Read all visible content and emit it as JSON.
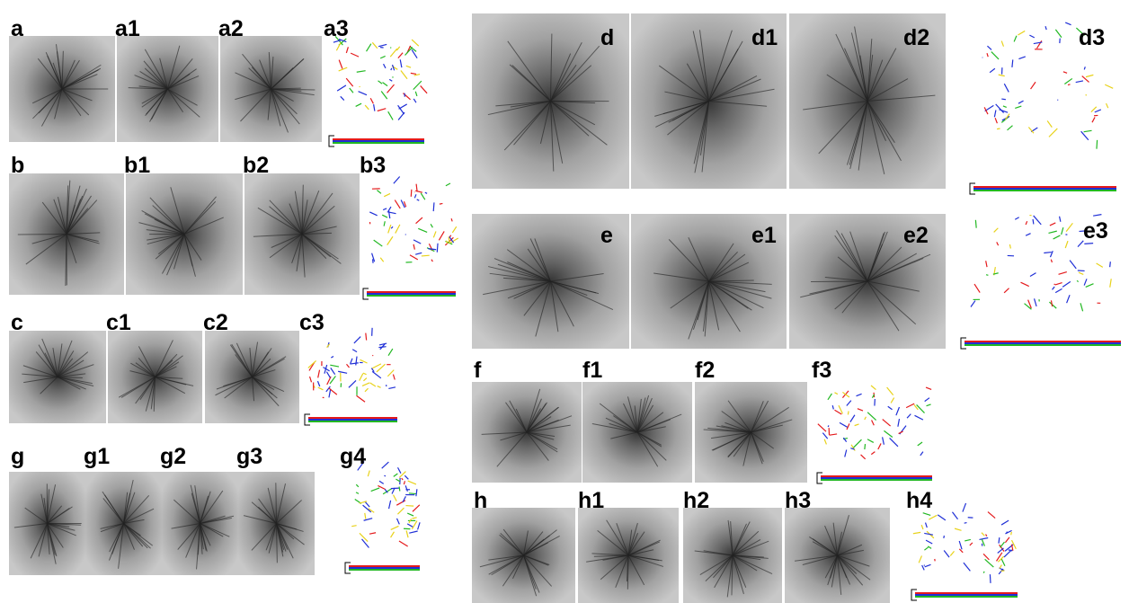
{
  "figure": {
    "labels": [
      "a",
      "a1",
      "a2",
      "a3",
      "b",
      "b1",
      "b2",
      "b3",
      "c",
      "c1",
      "c2",
      "c3",
      "g",
      "g1",
      "g2",
      "g3",
      "g4",
      "d",
      "d1",
      "d2",
      "d3",
      "e",
      "e1",
      "e2",
      "e3",
      "f",
      "f1",
      "f2",
      "f3",
      "h",
      "h1",
      "h2",
      "h3",
      "h4"
    ]
  }
}
